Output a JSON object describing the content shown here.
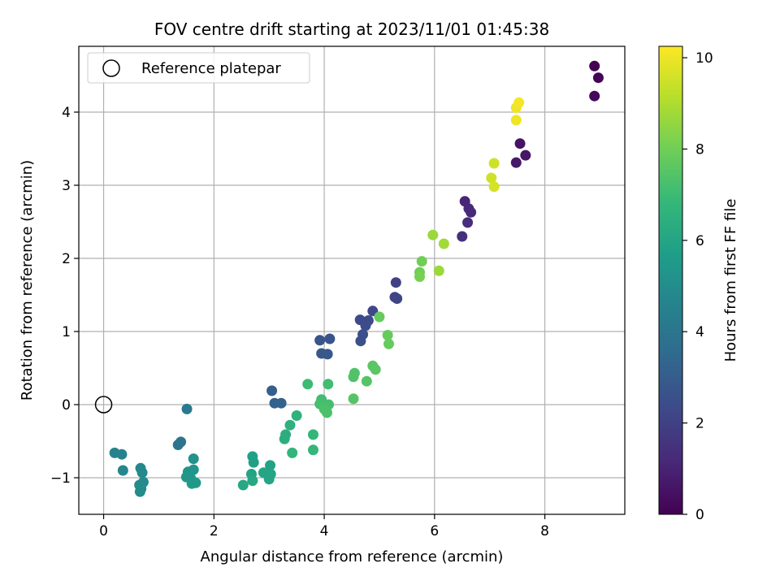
{
  "chart_data": {
    "type": "scatter",
    "title": "FOV centre drift starting at 2023/11/01 01:45:38",
    "xlabel": "Angular distance from reference (arcmin)",
    "ylabel": "Rotation from reference (arcmin)",
    "xlim": [
      -0.45,
      9.45
    ],
    "ylim": [
      -1.5,
      4.9
    ],
    "x_ticks": [
      0,
      2,
      4,
      6,
      8
    ],
    "y_ticks": [
      -1,
      0,
      1,
      2,
      3,
      4
    ],
    "grid": true,
    "legend": {
      "position": "top-left",
      "entries": [
        "Reference platepar"
      ]
    },
    "reference_point": {
      "x": 0,
      "y": 0,
      "label": "Reference platepar"
    },
    "colorbar": {
      "label": "Hours from first FF file",
      "range": [
        0,
        10.25
      ],
      "ticks": [
        0,
        2,
        4,
        6,
        8,
        10
      ],
      "colormap": "viridis",
      "colors": [
        "#440154",
        "#482878",
        "#3e4989",
        "#31688e",
        "#26828e",
        "#1f9e89",
        "#35b779",
        "#6ece58",
        "#b5de2b",
        "#fde725"
      ]
    },
    "points": [
      {
        "x": 8.9,
        "y": 4.63,
        "c": 0.0
      },
      {
        "x": 8.97,
        "y": 4.47,
        "c": 0.1
      },
      {
        "x": 8.9,
        "y": 4.22,
        "c": 0.2
      },
      {
        "x": 7.55,
        "y": 3.57,
        "c": 0.5
      },
      {
        "x": 7.65,
        "y": 3.41,
        "c": 0.6
      },
      {
        "x": 7.48,
        "y": 3.31,
        "c": 0.7
      },
      {
        "x": 6.55,
        "y": 2.78,
        "c": 1.1
      },
      {
        "x": 6.62,
        "y": 2.68,
        "c": 1.2
      },
      {
        "x": 6.66,
        "y": 2.63,
        "c": 1.2
      },
      {
        "x": 6.6,
        "y": 2.49,
        "c": 1.3
      },
      {
        "x": 6.5,
        "y": 2.3,
        "c": 1.4
      },
      {
        "x": 5.3,
        "y": 1.67,
        "c": 2.0
      },
      {
        "x": 5.28,
        "y": 1.47,
        "c": 2.1
      },
      {
        "x": 5.32,
        "y": 1.45,
        "c": 2.1
      },
      {
        "x": 4.88,
        "y": 1.28,
        "c": 2.2
      },
      {
        "x": 4.65,
        "y": 1.16,
        "c": 2.3
      },
      {
        "x": 4.8,
        "y": 1.15,
        "c": 2.3
      },
      {
        "x": 4.75,
        "y": 1.08,
        "c": 2.4
      },
      {
        "x": 4.7,
        "y": 0.96,
        "c": 2.5
      },
      {
        "x": 4.66,
        "y": 0.87,
        "c": 2.5
      },
      {
        "x": 3.92,
        "y": 0.88,
        "c": 2.7
      },
      {
        "x": 4.1,
        "y": 0.9,
        "c": 2.7
      },
      {
        "x": 3.95,
        "y": 0.7,
        "c": 2.8
      },
      {
        "x": 4.06,
        "y": 0.69,
        "c": 2.8
      },
      {
        "x": 3.05,
        "y": 0.19,
        "c": 3.1
      },
      {
        "x": 3.1,
        "y": 0.02,
        "c": 3.2
      },
      {
        "x": 3.22,
        "y": 0.02,
        "c": 3.2
      },
      {
        "x": 1.51,
        "y": -0.06,
        "c": 4.2
      },
      {
        "x": 1.35,
        "y": -0.55,
        "c": 4.0
      },
      {
        "x": 1.4,
        "y": -0.51,
        "c": 4.0
      },
      {
        "x": 0.2,
        "y": -0.66,
        "c": 4.6
      },
      {
        "x": 0.33,
        "y": -0.68,
        "c": 4.6
      },
      {
        "x": 0.35,
        "y": -0.9,
        "c": 4.7
      },
      {
        "x": 0.67,
        "y": -0.87,
        "c": 4.8
      },
      {
        "x": 0.7,
        "y": -0.93,
        "c": 4.8
      },
      {
        "x": 0.65,
        "y": -1.1,
        "c": 4.9
      },
      {
        "x": 0.72,
        "y": -1.06,
        "c": 4.9
      },
      {
        "x": 0.68,
        "y": -1.15,
        "c": 5.0
      },
      {
        "x": 0.66,
        "y": -1.19,
        "c": 5.0
      },
      {
        "x": 1.63,
        "y": -0.74,
        "c": 5.2
      },
      {
        "x": 1.53,
        "y": -0.92,
        "c": 5.3
      },
      {
        "x": 1.63,
        "y": -0.89,
        "c": 5.3
      },
      {
        "x": 1.5,
        "y": -0.99,
        "c": 5.4
      },
      {
        "x": 1.58,
        "y": -1.01,
        "c": 5.4
      },
      {
        "x": 1.6,
        "y": -1.08,
        "c": 5.5
      },
      {
        "x": 1.67,
        "y": -1.07,
        "c": 5.5
      },
      {
        "x": 2.7,
        "y": -0.71,
        "c": 5.8
      },
      {
        "x": 2.72,
        "y": -0.79,
        "c": 5.8
      },
      {
        "x": 3.02,
        "y": -0.83,
        "c": 5.9
      },
      {
        "x": 2.68,
        "y": -0.95,
        "c": 5.9
      },
      {
        "x": 2.9,
        "y": -0.93,
        "c": 6.0
      },
      {
        "x": 3.03,
        "y": -0.95,
        "c": 6.0
      },
      {
        "x": 3.0,
        "y": -1.02,
        "c": 6.0
      },
      {
        "x": 2.7,
        "y": -1.04,
        "c": 6.1
      },
      {
        "x": 2.53,
        "y": -1.1,
        "c": 6.1
      },
      {
        "x": 3.3,
        "y": -0.41,
        "c": 6.4
      },
      {
        "x": 3.28,
        "y": -0.47,
        "c": 6.4
      },
      {
        "x": 3.38,
        "y": -0.28,
        "c": 6.5
      },
      {
        "x": 3.5,
        "y": -0.15,
        "c": 6.6
      },
      {
        "x": 3.42,
        "y": -0.66,
        "c": 6.7
      },
      {
        "x": 3.8,
        "y": -0.41,
        "c": 6.8
      },
      {
        "x": 3.8,
        "y": -0.62,
        "c": 6.8
      },
      {
        "x": 3.7,
        "y": 0.28,
        "c": 7.0
      },
      {
        "x": 4.07,
        "y": 0.28,
        "c": 7.1
      },
      {
        "x": 3.95,
        "y": 0.07,
        "c": 7.1
      },
      {
        "x": 3.92,
        "y": 0.01,
        "c": 7.2
      },
      {
        "x": 4.08,
        "y": 0.0,
        "c": 7.2
      },
      {
        "x": 4.0,
        "y": -0.06,
        "c": 7.3
      },
      {
        "x": 4.05,
        "y": -0.11,
        "c": 7.3
      },
      {
        "x": 4.53,
        "y": 0.38,
        "c": 7.4
      },
      {
        "x": 4.55,
        "y": 0.43,
        "c": 7.4
      },
      {
        "x": 4.77,
        "y": 0.32,
        "c": 7.5
      },
      {
        "x": 4.53,
        "y": 0.08,
        "c": 7.5
      },
      {
        "x": 4.88,
        "y": 0.53,
        "c": 7.6
      },
      {
        "x": 4.93,
        "y": 0.48,
        "c": 7.6
      },
      {
        "x": 5.0,
        "y": 1.2,
        "c": 7.8
      },
      {
        "x": 5.15,
        "y": 0.95,
        "c": 7.8
      },
      {
        "x": 5.17,
        "y": 0.83,
        "c": 7.8
      },
      {
        "x": 5.77,
        "y": 1.96,
        "c": 8.0
      },
      {
        "x": 5.73,
        "y": 1.81,
        "c": 8.0
      },
      {
        "x": 5.73,
        "y": 1.75,
        "c": 8.1
      },
      {
        "x": 5.97,
        "y": 2.32,
        "c": 8.7
      },
      {
        "x": 6.17,
        "y": 2.2,
        "c": 8.8
      },
      {
        "x": 6.08,
        "y": 1.83,
        "c": 8.7
      },
      {
        "x": 7.08,
        "y": 3.3,
        "c": 9.5
      },
      {
        "x": 7.03,
        "y": 3.1,
        "c": 9.5
      },
      {
        "x": 7.08,
        "y": 2.98,
        "c": 9.6
      },
      {
        "x": 7.48,
        "y": 4.06,
        "c": 10.0
      },
      {
        "x": 7.53,
        "y": 4.13,
        "c": 10.1
      },
      {
        "x": 7.48,
        "y": 3.89,
        "c": 10.0
      }
    ]
  }
}
